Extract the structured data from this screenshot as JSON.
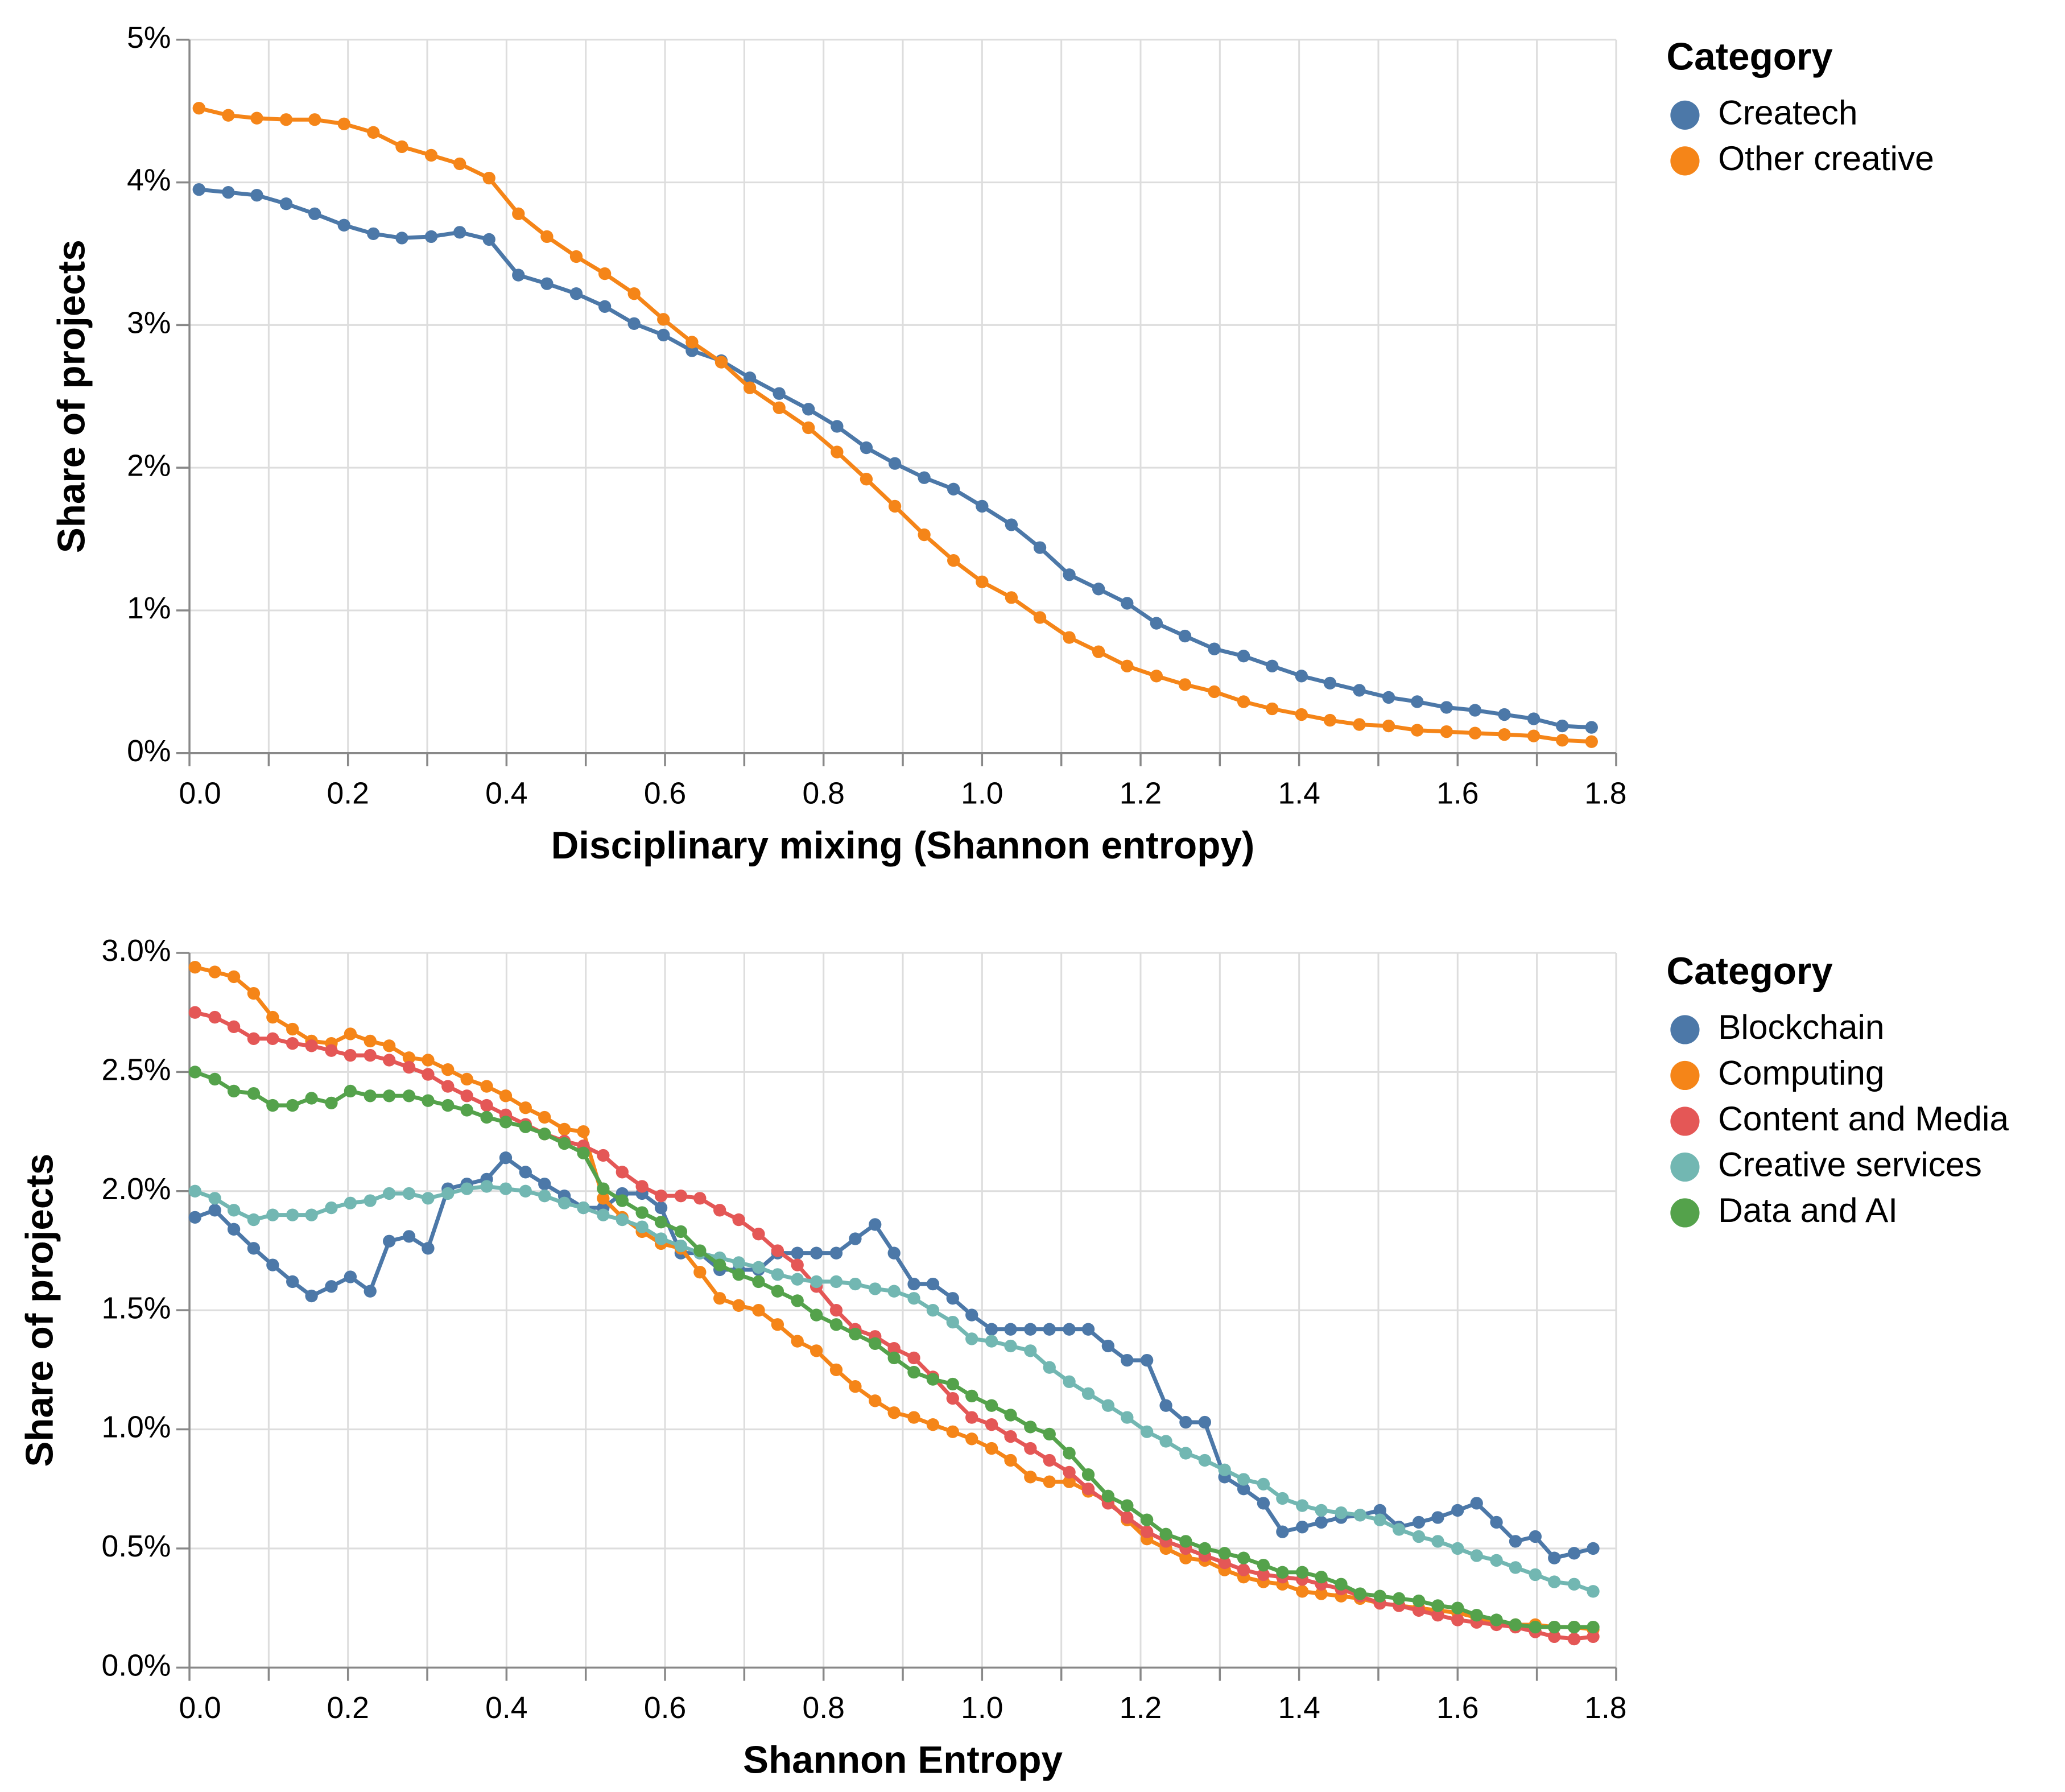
{
  "chart_data": [
    {
      "type": "line",
      "markers": true,
      "grid": true,
      "x_label": "Disciplinary mixing (Shannon entropy)",
      "y_label": "Share of projects",
      "legend_title": "Category",
      "xlim": [
        0,
        1.8
      ],
      "ylim": [
        0,
        5
      ],
      "xticks": [
        {
          "value": 0,
          "label": "0.0"
        },
        0.2,
        0.4,
        0.6,
        0.8,
        {
          "value": 1,
          "label": "1.0"
        },
        1.2,
        1.4,
        1.6,
        1.8
      ],
      "xgrid": [
        0,
        0.1,
        0.2,
        0.3,
        0.4,
        0.5,
        0.6,
        0.7,
        0.8,
        0.9,
        1,
        1.1,
        1.2,
        1.3,
        1.4,
        1.5,
        1.6,
        1.7,
        1.8
      ],
      "yticks": [
        {
          "value": 0,
          "label": "0%"
        },
        {
          "value": 1,
          "label": "1%"
        },
        {
          "value": 2,
          "label": "2%"
        },
        {
          "value": 3,
          "label": "3%"
        },
        {
          "value": 4,
          "label": "4%"
        },
        {
          "value": 5,
          "label": "5%"
        }
      ],
      "x": [
        0.012,
        0.049,
        0.085,
        0.122,
        0.158,
        0.195,
        0.232,
        0.268,
        0.305,
        0.341,
        0.378,
        0.415,
        0.451,
        0.488,
        0.524,
        0.561,
        0.598,
        0.634,
        0.671,
        0.707,
        0.744,
        0.781,
        0.817,
        0.854,
        0.89,
        0.927,
        0.964,
        1.0,
        1.037,
        1.073,
        1.11,
        1.147,
        1.183,
        1.22,
        1.256,
        1.293,
        1.33,
        1.366,
        1.403,
        1.439,
        1.476,
        1.513,
        1.549,
        1.586,
        1.622,
        1.659,
        1.696,
        1.732,
        1.769
      ],
      "series": [
        {
          "name": "Createch",
          "color": "#4c78a8",
          "values": [
            3.95,
            3.93,
            3.91,
            3.85,
            3.78,
            3.7,
            3.64,
            3.61,
            3.62,
            3.65,
            3.6,
            3.35,
            3.29,
            3.22,
            3.13,
            3.01,
            2.93,
            2.82,
            2.75,
            2.63,
            2.52,
            2.41,
            2.29,
            2.14,
            2.03,
            1.93,
            1.85,
            1.73,
            1.6,
            1.44,
            1.25,
            1.15,
            1.05,
            0.91,
            0.82,
            0.73,
            0.68,
            0.61,
            0.54,
            0.49,
            0.44,
            0.39,
            0.36,
            0.32,
            0.3,
            0.27,
            0.24,
            0.19,
            0.18
          ]
        },
        {
          "name": "Other creative",
          "color": "#f58518",
          "values": [
            4.52,
            4.47,
            4.45,
            4.44,
            4.44,
            4.41,
            4.35,
            4.25,
            4.19,
            4.13,
            4.03,
            3.78,
            3.62,
            3.48,
            3.36,
            3.22,
            3.04,
            2.88,
            2.74,
            2.56,
            2.42,
            2.28,
            2.11,
            1.92,
            1.73,
            1.53,
            1.35,
            1.2,
            1.09,
            0.95,
            0.81,
            0.71,
            0.61,
            0.54,
            0.48,
            0.43,
            0.36,
            0.31,
            0.27,
            0.23,
            0.2,
            0.19,
            0.16,
            0.15,
            0.14,
            0.13,
            0.12,
            0.09,
            0.08
          ]
        }
      ]
    },
    {
      "type": "line",
      "markers": true,
      "grid": true,
      "x_label": "Shannon Entropy",
      "y_label": "Share of projects",
      "legend_title": "Category",
      "xlim": [
        0,
        1.8
      ],
      "ylim": [
        0,
        3
      ],
      "xticks": [
        {
          "value": 0,
          "label": "0.0"
        },
        0.2,
        0.4,
        0.6,
        0.8,
        {
          "value": 1,
          "label": "1.0"
        },
        1.2,
        1.4,
        1.6,
        1.8
      ],
      "xgrid": [
        0,
        0.1,
        0.2,
        0.3,
        0.4,
        0.5,
        0.6,
        0.7,
        0.8,
        0.9,
        1,
        1.1,
        1.2,
        1.3,
        1.4,
        1.5,
        1.6,
        1.7,
        1.8
      ],
      "yticks": [
        {
          "value": 0,
          "label": "0.0%"
        },
        {
          "value": 0.5,
          "label": "0.5%"
        },
        {
          "value": 1,
          "label": "1.0%"
        },
        {
          "value": 1.5,
          "label": "1.5%"
        },
        {
          "value": 2,
          "label": "2.0%"
        },
        {
          "value": 2.5,
          "label": "2.5%"
        },
        {
          "value": 3,
          "label": "3.0%"
        }
      ],
      "x": [
        0.007,
        0.032,
        0.056,
        0.081,
        0.105,
        0.13,
        0.154,
        0.179,
        0.203,
        0.228,
        0.252,
        0.277,
        0.301,
        0.326,
        0.35,
        0.375,
        0.399,
        0.424,
        0.448,
        0.473,
        0.497,
        0.522,
        0.546,
        0.571,
        0.595,
        0.62,
        0.644,
        0.669,
        0.693,
        0.718,
        0.742,
        0.767,
        0.791,
        0.816,
        0.84,
        0.865,
        0.889,
        0.914,
        0.938,
        0.963,
        0.987,
        1.012,
        1.036,
        1.061,
        1.085,
        1.11,
        1.134,
        1.159,
        1.183,
        1.208,
        1.232,
        1.257,
        1.281,
        1.306,
        1.33,
        1.355,
        1.379,
        1.404,
        1.428,
        1.453,
        1.477,
        1.502,
        1.526,
        1.551,
        1.575,
        1.6,
        1.624,
        1.649,
        1.673,
        1.698,
        1.722,
        1.747,
        1.771
      ],
      "series": [
        {
          "name": "Blockchain",
          "color": "#4c78a8",
          "values": [
            1.89,
            1.92,
            1.84,
            1.76,
            1.69,
            1.62,
            1.56,
            1.6,
            1.64,
            1.58,
            1.79,
            1.81,
            1.76,
            2.01,
            2.03,
            2.05,
            2.14,
            2.08,
            2.03,
            1.98,
            1.93,
            1.93,
            1.99,
            1.99,
            1.93,
            1.74,
            1.74,
            1.67,
            1.67,
            1.67,
            1.74,
            1.74,
            1.74,
            1.74,
            1.8,
            1.86,
            1.74,
            1.61,
            1.61,
            1.55,
            1.48,
            1.42,
            1.42,
            1.42,
            1.42,
            1.42,
            1.42,
            1.35,
            1.29,
            1.29,
            1.1,
            1.03,
            1.03,
            0.8,
            0.75,
            0.69,
            0.57,
            0.59,
            0.61,
            0.63,
            0.64,
            0.66,
            0.59,
            0.61,
            0.63,
            0.66,
            0.69,
            0.61,
            0.53,
            0.55,
            0.46,
            0.48,
            0.5
          ]
        },
        {
          "name": "Computing",
          "color": "#f58518",
          "values": [
            2.94,
            2.92,
            2.9,
            2.83,
            2.73,
            2.68,
            2.63,
            2.62,
            2.66,
            2.63,
            2.61,
            2.56,
            2.55,
            2.51,
            2.47,
            2.44,
            2.4,
            2.35,
            2.31,
            2.26,
            2.25,
            1.97,
            1.89,
            1.83,
            1.78,
            1.76,
            1.66,
            1.55,
            1.52,
            1.5,
            1.44,
            1.37,
            1.33,
            1.25,
            1.18,
            1.12,
            1.07,
            1.05,
            1.02,
            0.99,
            0.96,
            0.92,
            0.87,
            0.8,
            0.78,
            0.78,
            0.74,
            0.7,
            0.62,
            0.54,
            0.5,
            0.46,
            0.45,
            0.41,
            0.38,
            0.36,
            0.35,
            0.32,
            0.31,
            0.3,
            0.29,
            0.27,
            0.26,
            0.25,
            0.24,
            0.23,
            0.21,
            0.19,
            0.18,
            0.18,
            0.17,
            0.17,
            0.16
          ]
        },
        {
          "name": "Content and Media",
          "color": "#e45756",
          "values": [
            2.75,
            2.73,
            2.69,
            2.64,
            2.64,
            2.62,
            2.61,
            2.59,
            2.57,
            2.57,
            2.55,
            2.52,
            2.49,
            2.44,
            2.4,
            2.36,
            2.32,
            2.28,
            2.24,
            2.21,
            2.19,
            2.15,
            2.08,
            2.02,
            1.98,
            1.98,
            1.97,
            1.92,
            1.88,
            1.82,
            1.75,
            1.69,
            1.6,
            1.5,
            1.42,
            1.39,
            1.34,
            1.3,
            1.22,
            1.13,
            1.05,
            1.02,
            0.97,
            0.92,
            0.87,
            0.82,
            0.75,
            0.69,
            0.63,
            0.57,
            0.53,
            0.5,
            0.47,
            0.44,
            0.41,
            0.39,
            0.38,
            0.37,
            0.35,
            0.33,
            0.3,
            0.27,
            0.26,
            0.24,
            0.22,
            0.2,
            0.19,
            0.18,
            0.17,
            0.15,
            0.13,
            0.12,
            0.13
          ]
        },
        {
          "name": "Creative services",
          "color": "#72b7b2",
          "values": [
            2.0,
            1.97,
            1.92,
            1.88,
            1.9,
            1.9,
            1.9,
            1.93,
            1.95,
            1.96,
            1.99,
            1.99,
            1.97,
            1.99,
            2.01,
            2.02,
            2.01,
            2.0,
            1.98,
            1.95,
            1.93,
            1.9,
            1.88,
            1.85,
            1.8,
            1.77,
            1.74,
            1.72,
            1.7,
            1.68,
            1.65,
            1.63,
            1.62,
            1.62,
            1.61,
            1.59,
            1.58,
            1.55,
            1.5,
            1.45,
            1.38,
            1.37,
            1.35,
            1.33,
            1.26,
            1.2,
            1.15,
            1.1,
            1.05,
            0.99,
            0.95,
            0.9,
            0.87,
            0.83,
            0.79,
            0.77,
            0.71,
            0.68,
            0.66,
            0.65,
            0.64,
            0.62,
            0.58,
            0.55,
            0.53,
            0.5,
            0.47,
            0.45,
            0.42,
            0.39,
            0.36,
            0.35,
            0.32
          ]
        },
        {
          "name": "Data and AI",
          "color": "#54a24b",
          "values": [
            2.5,
            2.47,
            2.42,
            2.41,
            2.36,
            2.36,
            2.39,
            2.37,
            2.42,
            2.4,
            2.4,
            2.4,
            2.38,
            2.36,
            2.34,
            2.31,
            2.29,
            2.27,
            2.24,
            2.2,
            2.16,
            2.01,
            1.96,
            1.91,
            1.87,
            1.83,
            1.75,
            1.69,
            1.65,
            1.62,
            1.58,
            1.54,
            1.48,
            1.44,
            1.4,
            1.36,
            1.3,
            1.24,
            1.21,
            1.19,
            1.14,
            1.1,
            1.06,
            1.01,
            0.98,
            0.9,
            0.81,
            0.72,
            0.68,
            0.62,
            0.56,
            0.53,
            0.5,
            0.48,
            0.46,
            0.43,
            0.4,
            0.4,
            0.38,
            0.35,
            0.31,
            0.3,
            0.29,
            0.28,
            0.26,
            0.25,
            0.22,
            0.2,
            0.18,
            0.17,
            0.17,
            0.17,
            0.17
          ]
        }
      ]
    }
  ]
}
